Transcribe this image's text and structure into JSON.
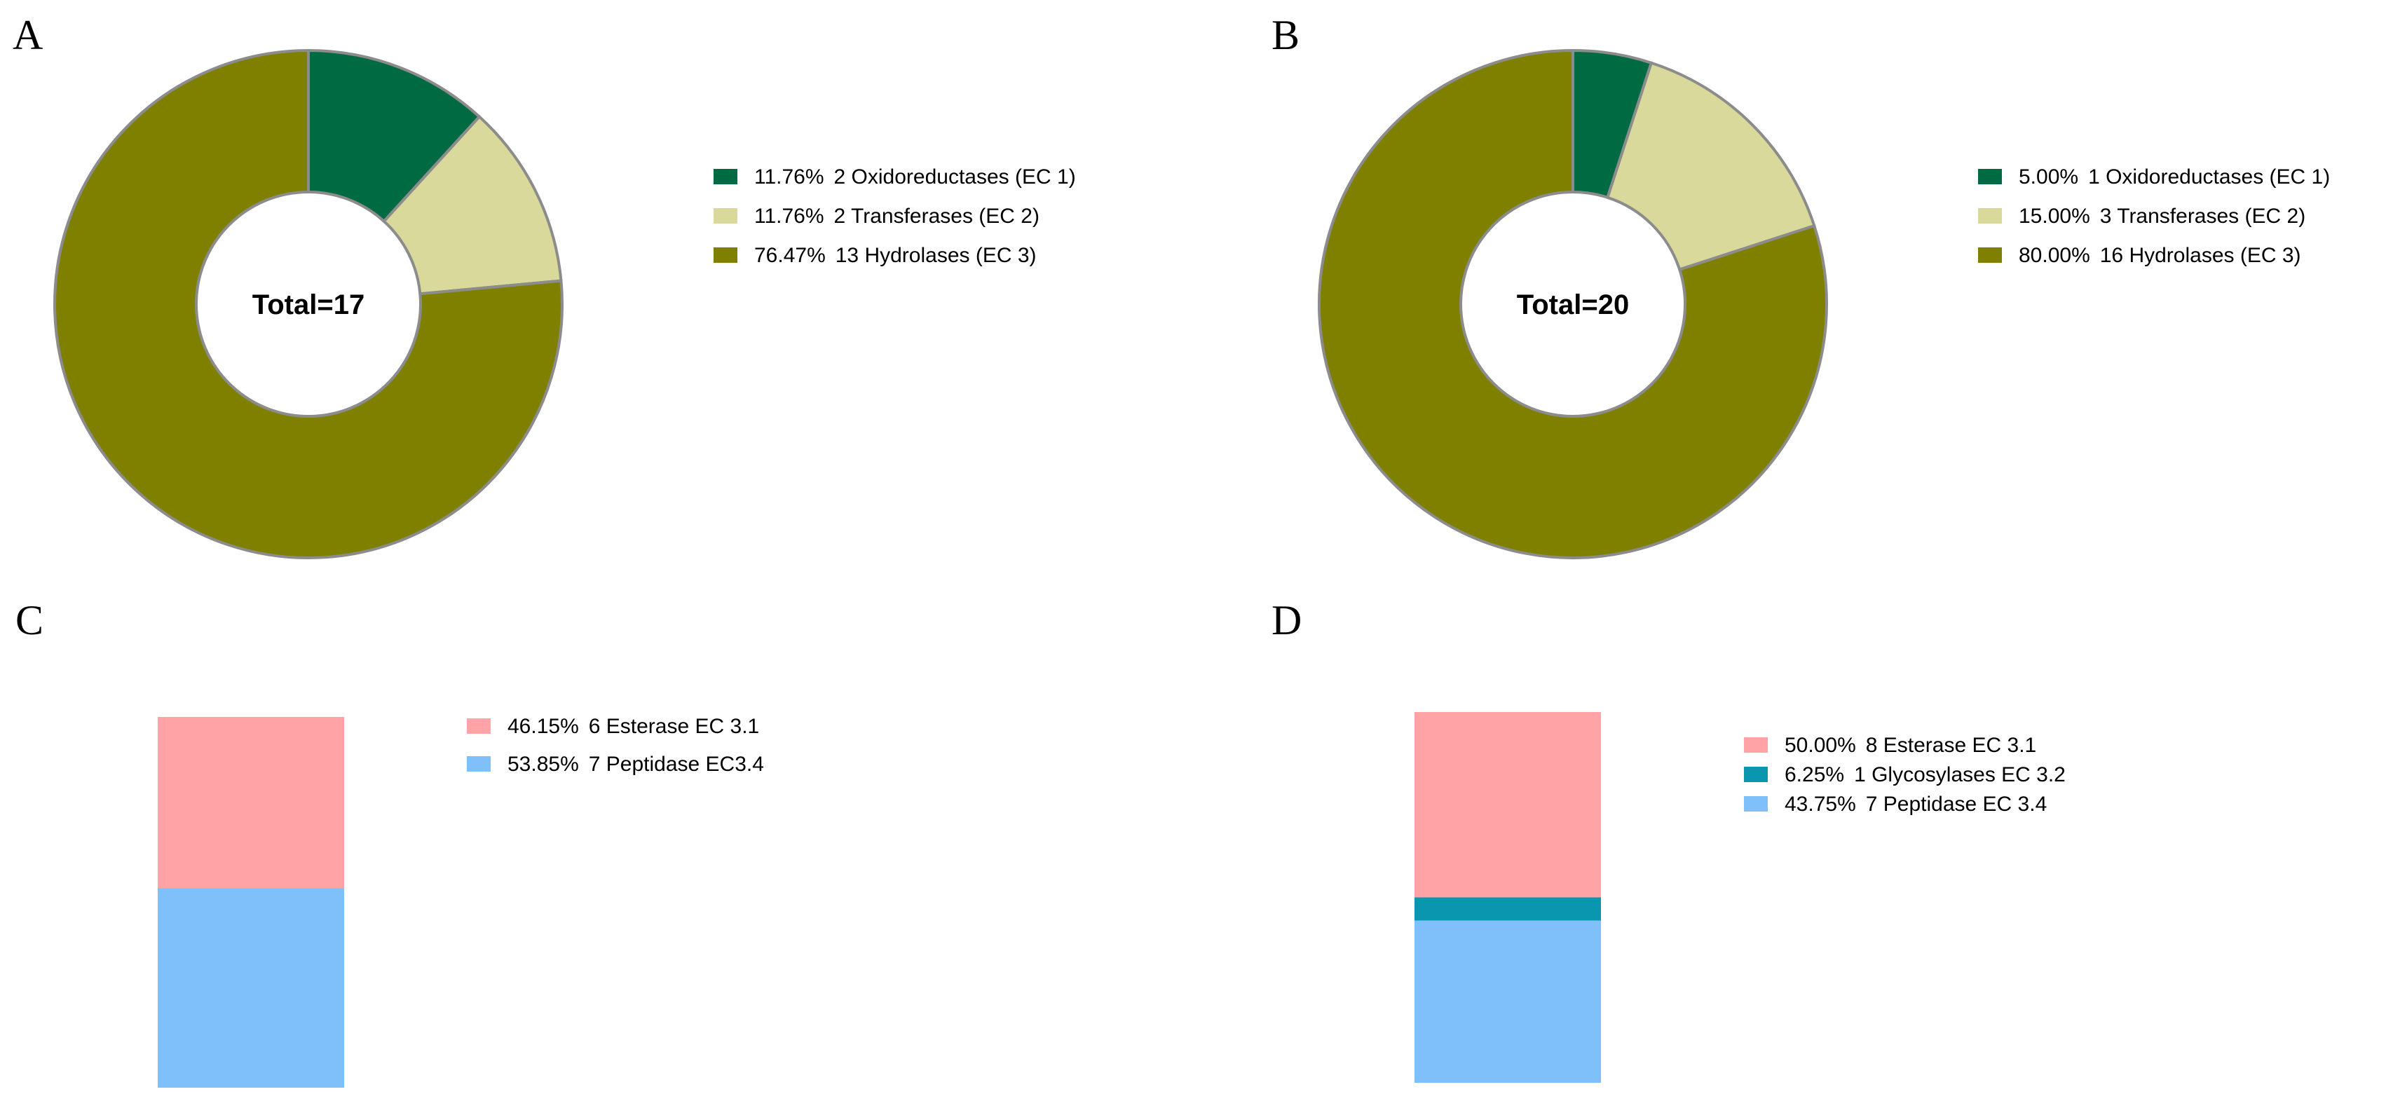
{
  "panels": [
    {
      "letter": "A"
    },
    {
      "letter": "B"
    },
    {
      "letter": "C"
    },
    {
      "letter": "D"
    }
  ],
  "chart_data": [
    {
      "type": "pie",
      "donut": true,
      "center_label": "Total=17",
      "slices": [
        {
          "percent_label": "11.76%",
          "label": "2 Oxidoreductases (EC 1)",
          "value": 2,
          "color": "#006b43"
        },
        {
          "percent_label": "11.76%",
          "label": "2 Transferases (EC 2)",
          "value": 2,
          "color": "#d9d99c"
        },
        {
          "percent_label": "76.47%",
          "label": "13 Hydrolases (EC 3)",
          "value": 13,
          "color": "#808000"
        }
      ],
      "legend_position": "right"
    },
    {
      "type": "pie",
      "donut": true,
      "center_label": "Total=20",
      "slices": [
        {
          "percent_label": "5.00%",
          "label": "1 Oxidoreductases (EC 1)",
          "value": 1,
          "color": "#006b43"
        },
        {
          "percent_label": "15.00%",
          "label": "3 Transferases (EC 2)",
          "value": 3,
          "color": "#d9d99c"
        },
        {
          "percent_label": "80.00%",
          "label": "16 Hydrolases (EC 3)",
          "value": 16,
          "color": "#808000"
        }
      ],
      "legend_position": "right"
    },
    {
      "type": "bar",
      "stacked": true,
      "segments": [
        {
          "percent_label": "46.15%",
          "label": "6 Esterase EC 3.1",
          "value": 6,
          "color": "#ffa3a6"
        },
        {
          "percent_label": "53.85%",
          "label": "7 Peptidase EC3.4",
          "value": 7,
          "color": "#7fc0fa"
        }
      ],
      "legend_position": "right"
    },
    {
      "type": "bar",
      "stacked": true,
      "segments": [
        {
          "percent_label": "50.00%",
          "label": "8 Esterase EC 3.1",
          "value": 8,
          "color": "#ffa3a6"
        },
        {
          "percent_label": "6.25%",
          "label": "1 Glycosylases EC 3.2",
          "value": 1,
          "color": "#0a96ae"
        },
        {
          "percent_label": "43.75%",
          "label": "7 Peptidase EC 3.4",
          "value": 7,
          "color": "#7fc0fa"
        }
      ],
      "legend_position": "right"
    }
  ]
}
